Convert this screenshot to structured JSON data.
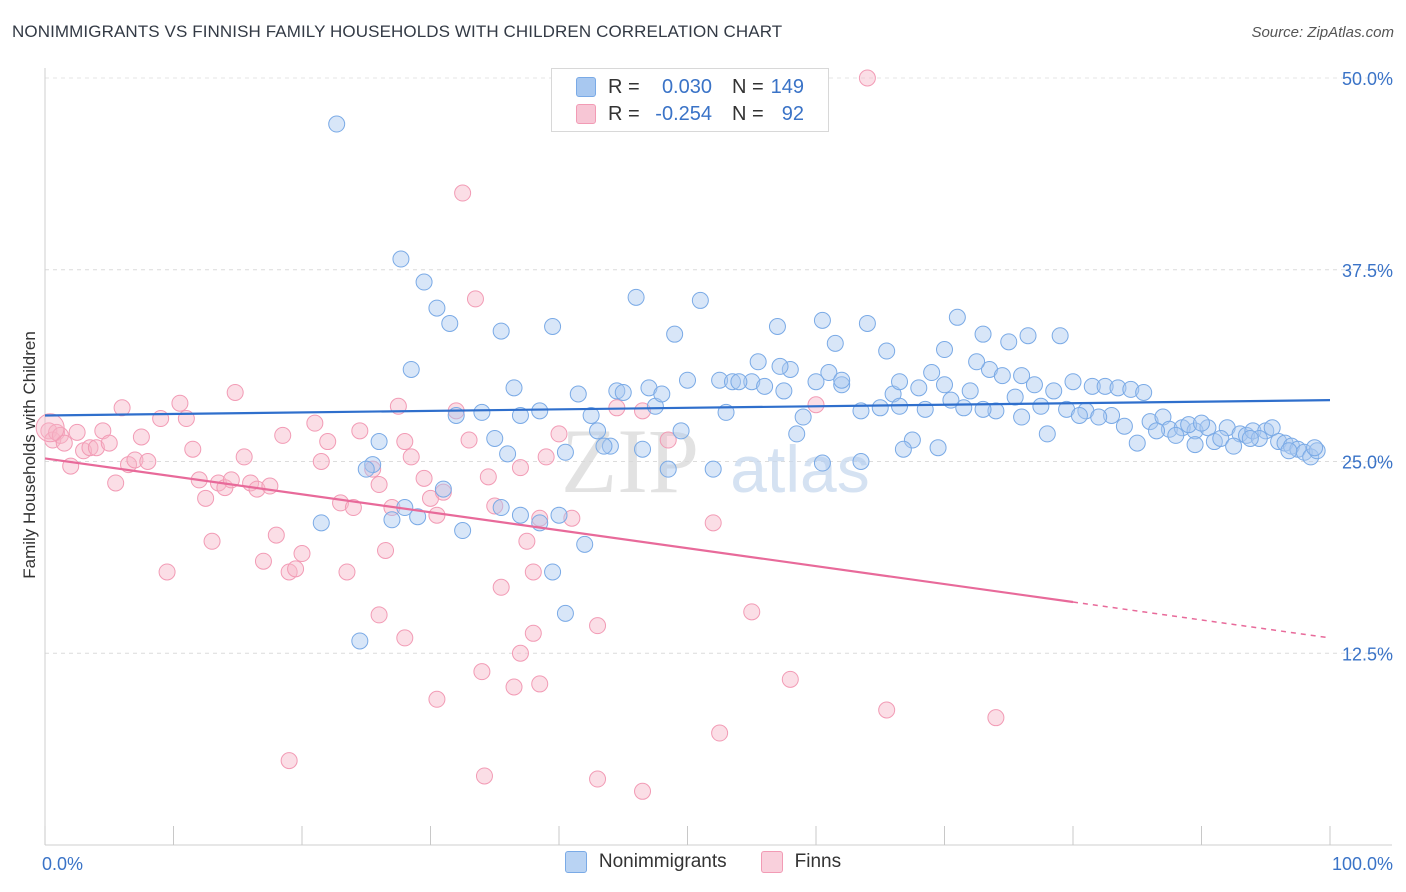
{
  "header": {
    "title": "NONIMMIGRANTS VS FINNISH FAMILY HOUSEHOLDS WITH CHILDREN CORRELATION CHART",
    "source": "Source: ZipAtlas.com"
  },
  "watermark": {
    "zip": "ZIP",
    "atlas": "atlas"
  },
  "legend": {
    "rows": [
      {
        "r_label": "R =",
        "r_value": "0.030",
        "n_label": "N =",
        "n_value": "149",
        "color": "#a8c8f0"
      },
      {
        "r_label": "R =",
        "r_value": "-0.254",
        "n_label": "N =",
        "n_value": "92",
        "color": "#f7b6c8"
      }
    ],
    "bottom": [
      {
        "label": "Nonimmigrants",
        "color": "#a8c8f0"
      },
      {
        "label": "Finns",
        "color": "#f7b6c8"
      }
    ]
  },
  "chart_data": {
    "type": "scatter",
    "title": "NONIMMIGRANTS VS FINNISH FAMILY HOUSEHOLDS WITH CHILDREN CORRELATION CHART",
    "xlabel": "",
    "ylabel": "Family Households with Children",
    "xlim": [
      0,
      100
    ],
    "ylim": [
      0,
      50
    ],
    "x_tick_labels": [
      "0.0%",
      "100.0%"
    ],
    "y_ticks": [
      12.5,
      25.0,
      37.5,
      50.0
    ],
    "y_tick_labels": [
      "12.5%",
      "25.0%",
      "37.5%",
      "50.0%"
    ],
    "grid": true,
    "series": [
      {
        "name": "Nonimmigrants",
        "color": "#7aaae6",
        "line_color": "#2f6fcc",
        "trend": {
          "x": [
            0,
            100
          ],
          "y": [
            28.0,
            29.0
          ],
          "dashed_from": null
        },
        "points": [
          [
            22.7,
            47.0
          ],
          [
            27.7,
            38.2
          ],
          [
            29.5,
            36.7
          ],
          [
            30.5,
            35.0
          ],
          [
            31.5,
            34.0
          ],
          [
            28.5,
            31.0
          ],
          [
            35.5,
            33.5
          ],
          [
            39.5,
            33.8
          ],
          [
            46.0,
            35.7
          ],
          [
            51.0,
            35.5
          ],
          [
            49.0,
            33.3
          ],
          [
            57.0,
            33.8
          ],
          [
            60.5,
            34.2
          ],
          [
            64.0,
            34.0
          ],
          [
            65.5,
            32.2
          ],
          [
            70.0,
            32.3
          ],
          [
            71.0,
            34.4
          ],
          [
            73.0,
            33.3
          ],
          [
            75.0,
            32.8
          ],
          [
            76.5,
            33.2
          ],
          [
            79.0,
            33.2
          ],
          [
            36.5,
            29.8
          ],
          [
            38.5,
            28.3
          ],
          [
            41.5,
            29.4
          ],
          [
            44.5,
            29.6
          ],
          [
            47.0,
            29.8
          ],
          [
            52.5,
            30.3
          ],
          [
            53.5,
            30.2
          ],
          [
            55.0,
            30.2
          ],
          [
            57.5,
            29.6
          ],
          [
            60.0,
            30.2
          ],
          [
            61.0,
            30.8
          ],
          [
            62.0,
            30.0
          ],
          [
            63.5,
            28.3
          ],
          [
            66.0,
            29.4
          ],
          [
            66.5,
            30.2
          ],
          [
            68.0,
            29.8
          ],
          [
            69.0,
            30.8
          ],
          [
            70.0,
            30.0
          ],
          [
            72.0,
            29.6
          ],
          [
            73.5,
            31.0
          ],
          [
            74.5,
            30.6
          ],
          [
            76.0,
            30.6
          ],
          [
            77.0,
            30.0
          ],
          [
            78.5,
            29.6
          ],
          [
            80.0,
            30.2
          ],
          [
            81.5,
            29.9
          ],
          [
            82.5,
            29.9
          ],
          [
            83.5,
            29.8
          ],
          [
            84.5,
            29.7
          ],
          [
            85.5,
            29.5
          ],
          [
            86.0,
            27.6
          ],
          [
            87.0,
            27.9
          ],
          [
            87.5,
            27.1
          ],
          [
            88.5,
            27.2
          ],
          [
            89.5,
            27.0
          ],
          [
            90.5,
            27.2
          ],
          [
            91.0,
            26.3
          ],
          [
            92.0,
            27.2
          ],
          [
            93.0,
            26.8
          ],
          [
            93.5,
            26.7
          ],
          [
            94.0,
            27.0
          ],
          [
            95.0,
            27.0
          ],
          [
            95.5,
            27.2
          ],
          [
            96.0,
            26.3
          ],
          [
            96.5,
            26.2
          ],
          [
            97.0,
            26.0
          ],
          [
            97.5,
            25.8
          ],
          [
            98.0,
            25.6
          ],
          [
            98.5,
            25.3
          ],
          [
            99.0,
            25.7
          ],
          [
            85.0,
            26.2
          ],
          [
            86.5,
            27.0
          ],
          [
            88.0,
            26.7
          ],
          [
            89.0,
            27.4
          ],
          [
            90.0,
            27.5
          ],
          [
            91.5,
            26.5
          ],
          [
            92.5,
            26.0
          ],
          [
            94.5,
            26.5
          ],
          [
            96.8,
            25.7
          ],
          [
            83.0,
            28.0
          ],
          [
            81.0,
            28.3
          ],
          [
            79.5,
            28.4
          ],
          [
            78.0,
            26.8
          ],
          [
            76.0,
            27.9
          ],
          [
            74.0,
            28.3
          ],
          [
            71.5,
            28.5
          ],
          [
            68.5,
            28.4
          ],
          [
            66.5,
            28.6
          ],
          [
            59.0,
            27.9
          ],
          [
            53.0,
            28.2
          ],
          [
            47.5,
            28.6
          ],
          [
            42.5,
            28.0
          ],
          [
            37.0,
            28.0
          ],
          [
            32.0,
            28.0
          ],
          [
            35.0,
            26.5
          ],
          [
            40.5,
            25.6
          ],
          [
            44.0,
            26.0
          ],
          [
            46.5,
            25.8
          ],
          [
            48.5,
            24.5
          ],
          [
            52.0,
            24.5
          ],
          [
            58.5,
            26.8
          ],
          [
            63.5,
            25.0
          ],
          [
            26.0,
            26.3
          ],
          [
            25.5,
            24.8
          ],
          [
            25.0,
            24.5
          ],
          [
            31.0,
            23.2
          ],
          [
            28.0,
            22.0
          ],
          [
            27.0,
            21.2
          ],
          [
            21.5,
            21.0
          ],
          [
            35.5,
            22.0
          ],
          [
            38.5,
            21.0
          ],
          [
            32.5,
            20.5
          ],
          [
            37.0,
            21.5
          ],
          [
            40.0,
            21.5
          ],
          [
            42.0,
            19.6
          ],
          [
            39.5,
            17.8
          ],
          [
            40.5,
            15.1
          ],
          [
            24.5,
            13.3
          ],
          [
            29.0,
            21.4
          ],
          [
            34.0,
            28.2
          ],
          [
            43.0,
            27.0
          ],
          [
            48.0,
            29.4
          ],
          [
            54.0,
            30.2
          ],
          [
            62.0,
            30.3
          ],
          [
            65.0,
            28.5
          ],
          [
            67.5,
            26.4
          ],
          [
            69.5,
            25.9
          ],
          [
            73.0,
            28.4
          ],
          [
            75.5,
            29.2
          ],
          [
            77.5,
            28.6
          ],
          [
            80.5,
            28.0
          ],
          [
            82.0,
            27.9
          ],
          [
            84.0,
            27.3
          ],
          [
            89.5,
            26.1
          ],
          [
            93.8,
            26.5
          ],
          [
            98.8,
            25.9
          ],
          [
            56.0,
            29.9
          ],
          [
            58.0,
            31.0
          ],
          [
            49.5,
            27.0
          ],
          [
            43.5,
            26.0
          ],
          [
            36.0,
            25.5
          ],
          [
            55.5,
            31.5
          ],
          [
            57.2,
            31.2
          ],
          [
            61.5,
            32.7
          ],
          [
            70.5,
            29.0
          ],
          [
            72.5,
            31.5
          ],
          [
            45.0,
            29.5
          ],
          [
            50.0,
            30.3
          ],
          [
            60.5,
            24.9
          ],
          [
            66.8,
            25.8
          ]
        ]
      },
      {
        "name": "Finns",
        "color": "#f29bb5",
        "line_color": "#e86a9a",
        "trend": {
          "x": [
            0,
            100
          ],
          "y": [
            25.2,
            13.5
          ],
          "dashed_from": 80
        },
        "points": [
          [
            0.3,
            27.0
          ],
          [
            0.6,
            26.4
          ],
          [
            0.9,
            26.9
          ],
          [
            1.2,
            26.7
          ],
          [
            1.5,
            26.2
          ],
          [
            2.0,
            24.7
          ],
          [
            2.5,
            26.9
          ],
          [
            3.0,
            25.7
          ],
          [
            3.5,
            25.9
          ],
          [
            4.0,
            25.9
          ],
          [
            4.5,
            27.0
          ],
          [
            5.0,
            26.2
          ],
          [
            5.5,
            23.6
          ],
          [
            6.0,
            28.5
          ],
          [
            6.5,
            24.8
          ],
          [
            7.0,
            25.1
          ],
          [
            7.5,
            26.6
          ],
          [
            8.0,
            25.0
          ],
          [
            9.0,
            27.8
          ],
          [
            9.5,
            17.8
          ],
          [
            10.5,
            28.8
          ],
          [
            11.0,
            27.8
          ],
          [
            11.5,
            25.8
          ],
          [
            12.0,
            23.8
          ],
          [
            12.5,
            22.6
          ],
          [
            13.0,
            19.8
          ],
          [
            13.5,
            23.6
          ],
          [
            14.0,
            23.3
          ],
          [
            14.5,
            23.8
          ],
          [
            14.8,
            29.5
          ],
          [
            15.5,
            25.3
          ],
          [
            16.0,
            23.6
          ],
          [
            16.5,
            23.2
          ],
          [
            17.0,
            18.5
          ],
          [
            17.5,
            23.4
          ],
          [
            18.0,
            20.2
          ],
          [
            18.5,
            26.7
          ],
          [
            19.0,
            17.8
          ],
          [
            19.5,
            18.0
          ],
          [
            20.0,
            19.0
          ],
          [
            21.0,
            27.5
          ],
          [
            21.5,
            25.0
          ],
          [
            22.0,
            26.3
          ],
          [
            23.0,
            22.3
          ],
          [
            23.5,
            17.8
          ],
          [
            24.0,
            22.0
          ],
          [
            24.5,
            27.0
          ],
          [
            25.5,
            24.5
          ],
          [
            26.0,
            23.5
          ],
          [
            26.5,
            19.2
          ],
          [
            27.0,
            22.0
          ],
          [
            27.5,
            28.6
          ],
          [
            28.0,
            26.3
          ],
          [
            28.5,
            25.3
          ],
          [
            29.5,
            23.9
          ],
          [
            30.0,
            22.6
          ],
          [
            30.5,
            21.5
          ],
          [
            31.0,
            23.0
          ],
          [
            32.0,
            28.3
          ],
          [
            33.0,
            26.4
          ],
          [
            33.5,
            35.6
          ],
          [
            34.5,
            24.0
          ],
          [
            35.0,
            22.1
          ],
          [
            35.5,
            16.8
          ],
          [
            37.0,
            24.6
          ],
          [
            37.5,
            19.8
          ],
          [
            38.0,
            17.8
          ],
          [
            38.5,
            21.3
          ],
          [
            39.0,
            25.3
          ],
          [
            40.0,
            26.8
          ],
          [
            41.0,
            21.3
          ],
          [
            43.0,
            14.3
          ],
          [
            44.5,
            28.5
          ],
          [
            46.5,
            28.3
          ],
          [
            48.5,
            26.4
          ],
          [
            52.0,
            21.0
          ],
          [
            55.0,
            15.2
          ],
          [
            60.0,
            28.7
          ],
          [
            32.5,
            42.5
          ],
          [
            64.0,
            50.0
          ],
          [
            38.0,
            13.8
          ],
          [
            37.0,
            12.5
          ],
          [
            36.5,
            10.3
          ],
          [
            38.5,
            10.5
          ],
          [
            28.0,
            13.5
          ],
          [
            26.0,
            15.0
          ],
          [
            30.5,
            9.5
          ],
          [
            34.0,
            11.3
          ],
          [
            19.0,
            5.5
          ],
          [
            34.2,
            4.5
          ],
          [
            46.5,
            3.5
          ],
          [
            52.5,
            7.3
          ],
          [
            58.0,
            10.8
          ],
          [
            65.5,
            8.8
          ],
          [
            74.0,
            8.3
          ],
          [
            43.0,
            4.3
          ]
        ]
      }
    ]
  }
}
